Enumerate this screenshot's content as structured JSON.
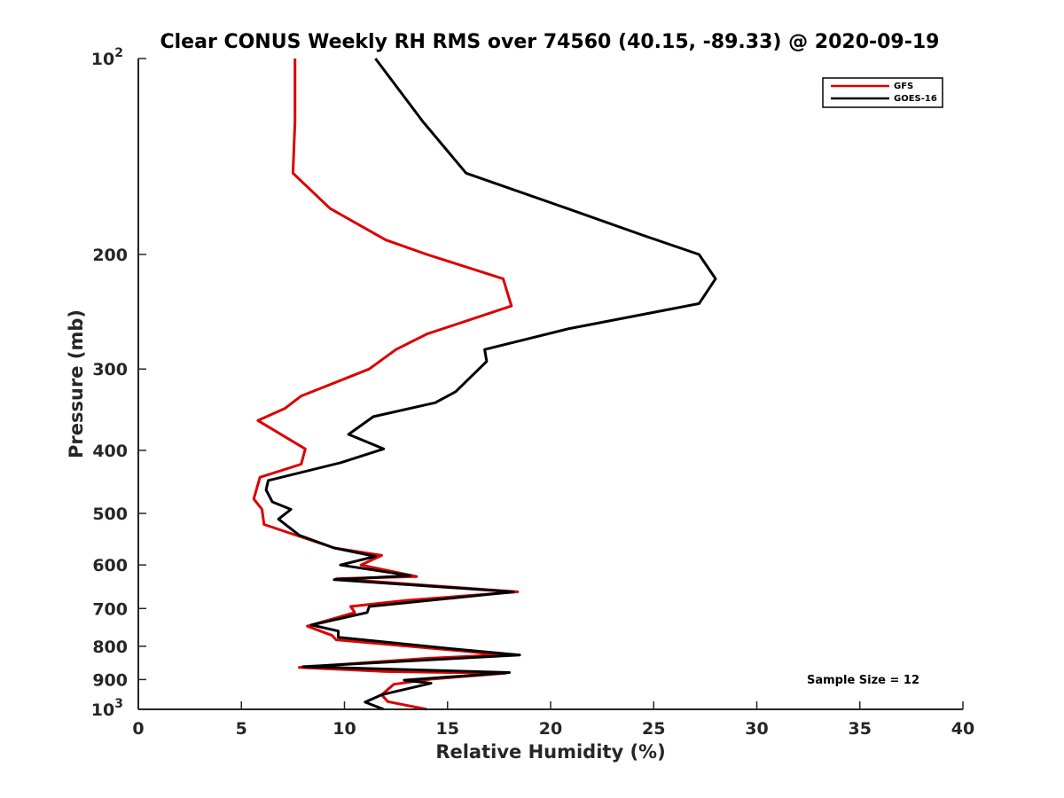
{
  "chart_data": {
    "type": "line",
    "title": "Clear CONUS Weekly RH RMS over 74560 (40.15, -89.33) @ 2020-09-19",
    "xlabel": "Relative Humidity (%)",
    "ylabel": "Pressure (mb)",
    "xlim": [
      0,
      40
    ],
    "ylim": [
      100,
      1000
    ],
    "yscale": "log",
    "y_direction": "reversed",
    "grid": false,
    "legend_position": "top-right",
    "x_ticks": [
      {
        "value": 0,
        "label": "0"
      },
      {
        "value": 5,
        "label": "5"
      },
      {
        "value": 10,
        "label": "10"
      },
      {
        "value": 15,
        "label": "15"
      },
      {
        "value": 20,
        "label": "20"
      },
      {
        "value": 25,
        "label": "25"
      },
      {
        "value": 30,
        "label": "30"
      },
      {
        "value": 35,
        "label": "35"
      },
      {
        "value": 40,
        "label": "40"
      }
    ],
    "y_ticks": [
      {
        "value": 100,
        "label": "10",
        "sup": "2"
      },
      {
        "value": 200,
        "label": "200"
      },
      {
        "value": 300,
        "label": "300"
      },
      {
        "value": 400,
        "label": "400"
      },
      {
        "value": 500,
        "label": "500"
      },
      {
        "value": 600,
        "label": "600"
      },
      {
        "value": 700,
        "label": "700"
      },
      {
        "value": 800,
        "label": "800"
      },
      {
        "value": 900,
        "label": "900"
      },
      {
        "value": 1000,
        "label": "10",
        "sup": "3"
      }
    ],
    "series": [
      {
        "name": "GFS",
        "color": "#dd0000",
        "points": [
          [
            7.6,
            100
          ],
          [
            7.6,
            125
          ],
          [
            7.5,
            150
          ],
          [
            9.3,
            170
          ],
          [
            12.0,
            190
          ],
          [
            14.0,
            200
          ],
          [
            17.7,
            218
          ],
          [
            18.1,
            240
          ],
          [
            14.0,
            265
          ],
          [
            12.5,
            280
          ],
          [
            11.2,
            300
          ],
          [
            7.9,
            330
          ],
          [
            7.1,
            345
          ],
          [
            5.8,
            360
          ],
          [
            8.1,
            398
          ],
          [
            7.9,
            420
          ],
          [
            5.9,
            440
          ],
          [
            5.6,
            475
          ],
          [
            6.0,
            493
          ],
          [
            6.1,
            520
          ],
          [
            9.5,
            565
          ],
          [
            11.8,
            580
          ],
          [
            10.8,
            600
          ],
          [
            13.5,
            625
          ],
          [
            9.6,
            630
          ],
          [
            18.4,
            660
          ],
          [
            13.0,
            680
          ],
          [
            10.3,
            695
          ],
          [
            10.5,
            710
          ],
          [
            8.2,
            745
          ],
          [
            9.4,
            770
          ],
          [
            9.6,
            782
          ],
          [
            16.0,
            815
          ],
          [
            17.5,
            825
          ],
          [
            14.0,
            835
          ],
          [
            7.8,
            862
          ],
          [
            12.0,
            875
          ],
          [
            17.8,
            880
          ],
          [
            14.3,
            898
          ],
          [
            12.4,
            915
          ],
          [
            11.8,
            950
          ],
          [
            12.1,
            973
          ],
          [
            14.0,
            1000
          ]
        ]
      },
      {
        "name": "GOES-16",
        "color": "#000000",
        "points": [
          [
            11.5,
            100
          ],
          [
            13.8,
            125
          ],
          [
            15.9,
            150
          ],
          [
            20.8,
            170
          ],
          [
            24.5,
            187
          ],
          [
            27.2,
            200
          ],
          [
            28.0,
            218
          ],
          [
            27.2,
            238
          ],
          [
            20.9,
            260
          ],
          [
            16.8,
            280
          ],
          [
            16.9,
            292
          ],
          [
            15.4,
            325
          ],
          [
            14.4,
            338
          ],
          [
            11.4,
            355
          ],
          [
            10.2,
            378
          ],
          [
            11.9,
            398
          ],
          [
            9.8,
            418
          ],
          [
            6.3,
            445
          ],
          [
            6.2,
            460
          ],
          [
            6.5,
            480
          ],
          [
            7.4,
            493
          ],
          [
            6.8,
            510
          ],
          [
            7.8,
            540
          ],
          [
            9.5,
            565
          ],
          [
            11.5,
            582
          ],
          [
            9.8,
            600
          ],
          [
            13.2,
            623
          ],
          [
            9.5,
            632
          ],
          [
            18.2,
            660
          ],
          [
            11.2,
            695
          ],
          [
            11.1,
            710
          ],
          [
            8.4,
            742
          ],
          [
            9.7,
            758
          ],
          [
            9.7,
            775
          ],
          [
            15.7,
            810
          ],
          [
            18.5,
            825
          ],
          [
            8.0,
            860
          ],
          [
            18.0,
            878
          ],
          [
            12.9,
            902
          ],
          [
            14.2,
            912
          ],
          [
            11.8,
            950
          ],
          [
            11.0,
            975
          ],
          [
            11.9,
            1000
          ]
        ]
      }
    ],
    "annotation": "Sample Size = 12"
  }
}
